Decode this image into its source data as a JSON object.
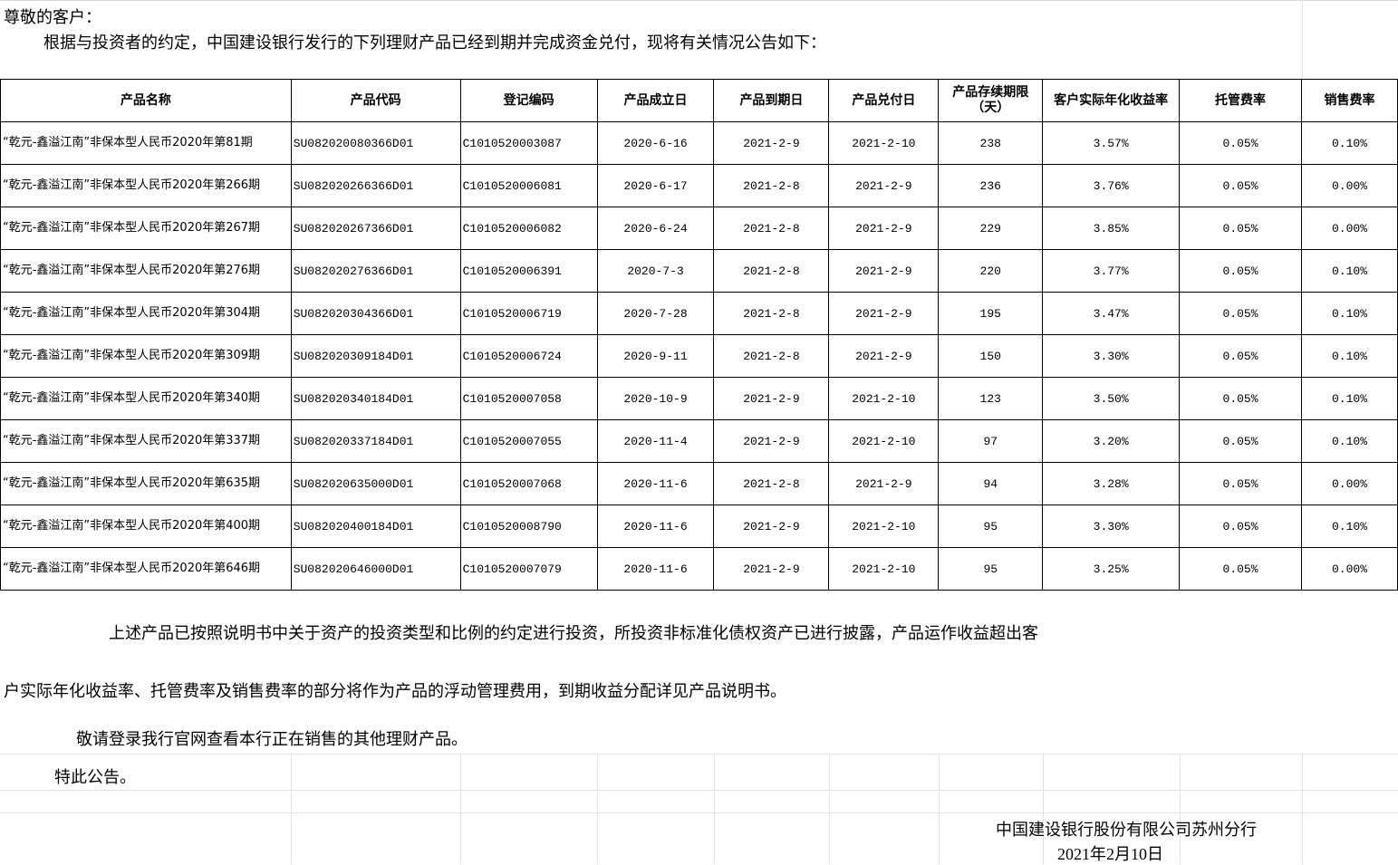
{
  "greeting": "尊敬的客户：",
  "intro": "根据与投资者的约定，中国建设银行发行的下列理财产品已经到期并完成资金兑付，现将有关情况公告如下：",
  "table": {
    "headers": [
      "产品名称",
      "产品代码",
      "登记编码",
      "产品成立日",
      "产品到期日",
      "产品兑付日",
      "产品存续期限（天）",
      "客户实际年化收益率",
      "托管费率",
      "销售费率"
    ],
    "rows": [
      [
        "“乾元-鑫溢江南”非保本型人民币2020年第81期",
        "SU082020080366D01",
        "C1010520003087",
        "2020-6-16",
        "2021-2-9",
        "2021-2-10",
        "238",
        "3.57%",
        "0.05%",
        "0.10%"
      ],
      [
        "“乾元-鑫溢江南”非保本型人民币2020年第266期",
        "SU082020266366D01",
        "C1010520006081",
        "2020-6-17",
        "2021-2-8",
        "2021-2-9",
        "236",
        "3.76%",
        "0.05%",
        "0.00%"
      ],
      [
        "“乾元-鑫溢江南”非保本型人民币2020年第267期",
        "SU082020267366D01",
        "C1010520006082",
        "2020-6-24",
        "2021-2-8",
        "2021-2-9",
        "229",
        "3.85%",
        "0.05%",
        "0.00%"
      ],
      [
        "“乾元-鑫溢江南”非保本型人民币2020年第276期",
        "SU082020276366D01",
        "C1010520006391",
        "2020-7-3",
        "2021-2-8",
        "2021-2-9",
        "220",
        "3.77%",
        "0.05%",
        "0.10%"
      ],
      [
        "“乾元-鑫溢江南”非保本型人民币2020年第304期",
        "SU082020304366D01",
        "C1010520006719",
        "2020-7-28",
        "2021-2-8",
        "2021-2-9",
        "195",
        "3.47%",
        "0.05%",
        "0.10%"
      ],
      [
        "“乾元-鑫溢江南”非保本型人民币2020年第309期",
        "SU082020309184D01",
        "C1010520006724",
        "2020-9-11",
        "2021-2-8",
        "2021-2-9",
        "150",
        "3.30%",
        "0.05%",
        "0.10%"
      ],
      [
        "“乾元-鑫溢江南”非保本型人民币2020年第340期",
        "SU082020340184D01",
        "C1010520007058",
        "2020-10-9",
        "2021-2-9",
        "2021-2-10",
        "123",
        "3.50%",
        "0.05%",
        "0.10%"
      ],
      [
        "“乾元-鑫溢江南”非保本型人民币2020年第337期",
        "SU082020337184D01",
        "C1010520007055",
        "2020-11-4",
        "2021-2-9",
        "2021-2-10",
        "97",
        "3.20%",
        "0.05%",
        "0.10%"
      ],
      [
        "“乾元-鑫溢江南”非保本型人民币2020年第635期",
        "SU082020635000D01",
        "C1010520007068",
        "2020-11-6",
        "2021-2-8",
        "2021-2-9",
        "94",
        "3.28%",
        "0.05%",
        "0.00%"
      ],
      [
        "“乾元-鑫溢江南”非保本型人民币2020年第400期",
        "SU082020400184D01",
        "C1010520008790",
        "2020-11-6",
        "2021-2-9",
        "2021-2-10",
        "95",
        "3.30%",
        "0.05%",
        "0.10%"
      ],
      [
        "“乾元-鑫溢江南”非保本型人民币2020年第646期",
        "SU082020646000D01",
        "C1010520007079",
        "2020-11-6",
        "2021-2-9",
        "2021-2-10",
        "95",
        "3.25%",
        "0.05%",
        "0.00%"
      ]
    ]
  },
  "note_line1": "上述产品已按照说明书中关于资产的投资类型和比例的约定进行投资，所投资非标准化债权资产已进行披露，产品运作收益超出客",
  "note_line2": "户实际年化收益率、托管费率及销售费率的部分将作为产品的浮动管理费用，到期收益分配详见产品说明书。",
  "invite": "敬请登录我行官网查看本行正在销售的其他理财产品。",
  "closing": "特此公告。",
  "signature": "中国建设银行股份有限公司苏州分行",
  "date": "2021年2月10日"
}
